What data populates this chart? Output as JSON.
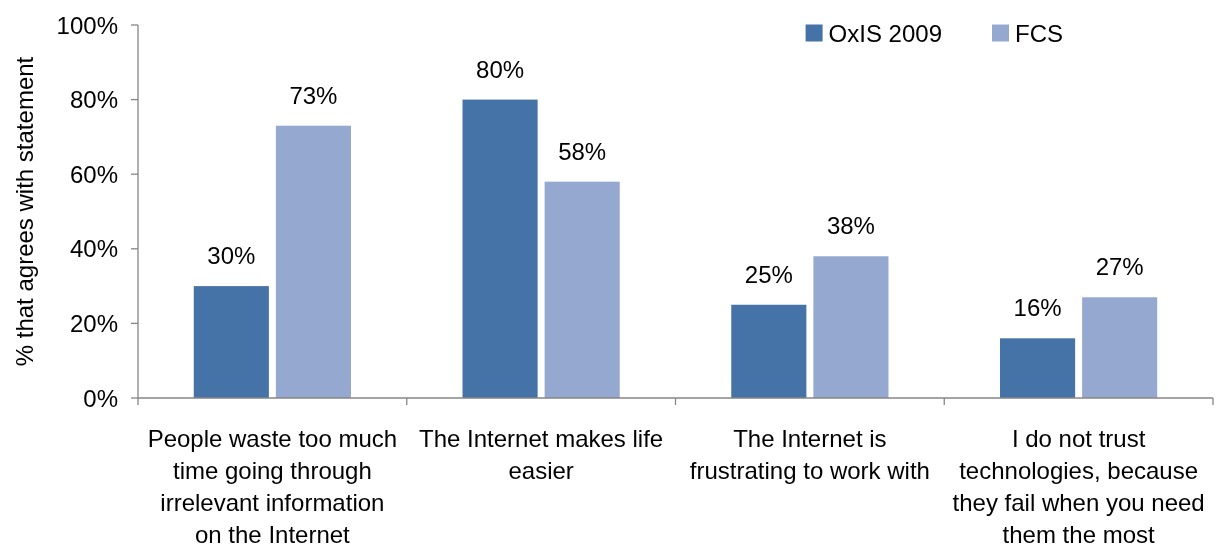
{
  "chart_data": {
    "type": "bar",
    "ylabel": "% that agrees with statement",
    "categories": [
      "People waste too much time going through irrelevant information on the Internet",
      "The Internet makes life easier",
      "The Internet is frustrating to work with",
      "I do not trust technologies, because they fail when you need them the most"
    ],
    "series": [
      {
        "name": "OxIS 2009",
        "color": "#4572a7",
        "values": [
          30,
          80,
          25,
          16
        ],
        "value_labels": [
          "30%",
          "80%",
          "25%",
          "16%"
        ]
      },
      {
        "name": "FCS",
        "color": "#95a9d0",
        "values": [
          73,
          58,
          38,
          27
        ],
        "value_labels": [
          "73%",
          "58%",
          "38%",
          "27%"
        ]
      }
    ],
    "ylim": [
      0,
      100
    ],
    "yticks": [
      {
        "value": 0,
        "label": "0%"
      },
      {
        "value": 20,
        "label": "20%"
      },
      {
        "value": 40,
        "label": "40%"
      },
      {
        "value": 60,
        "label": "60%"
      },
      {
        "value": 80,
        "label": "80%"
      },
      {
        "value": 100,
        "label": "100%"
      }
    ],
    "legend": "top right"
  }
}
